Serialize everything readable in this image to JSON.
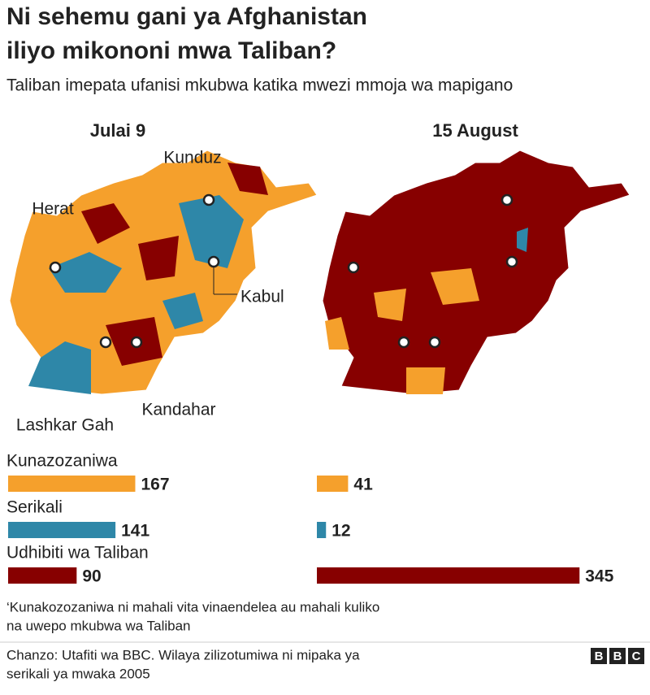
{
  "chart_data": {
    "type": "bar",
    "title": [
      "Ni sehemu gani ya Afghanistan",
      "iliyo mikononi mwa Taliban?"
    ],
    "subtitle": "Taliban imepata ufanisi mkubwa katika mwezi mmoja wa mapigano",
    "categories": [
      "Kunazozaniwa",
      "Serikali",
      "Udhibiti wa Taliban"
    ],
    "colors": [
      "#f5a02c",
      "#2e87a8",
      "#870000"
    ],
    "series": [
      {
        "name": "Julai 9",
        "values": [
          167,
          141,
          90
        ]
      },
      {
        "name": "15 August",
        "values": [
          41,
          12,
          345
        ]
      }
    ],
    "map_labels": [
      "Kunduz",
      "Herat",
      "Kabul",
      "Lashkar Gah",
      "Kandahar"
    ],
    "note": [
      "‘Kunakozozaniwa ni mahali vita vinaendelea au mahali kuliko",
      "na uwepo mkubwa wa Taliban"
    ],
    "source": [
      "Chanzo: Utafiti wa BBC. Wilaya zilizotumiwa ni mipaka ya",
      "serikali ya mwaka 2005"
    ],
    "logo": "BBC"
  }
}
